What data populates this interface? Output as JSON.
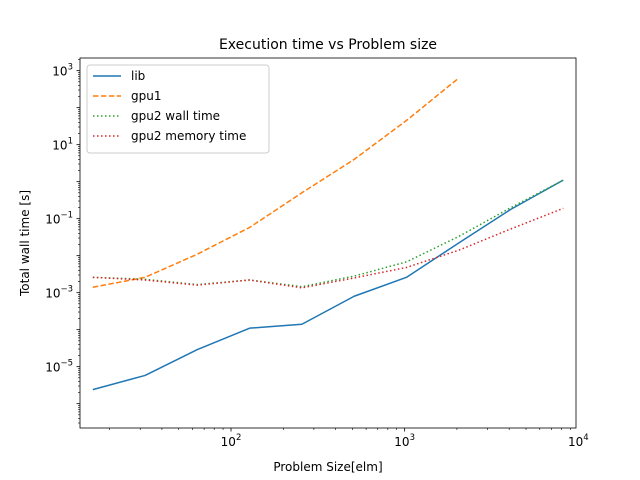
{
  "chart_data": {
    "type": "line",
    "title": "Execution time vs Problem size",
    "xlabel": "Problem Size[elm]",
    "ylabel": "Total wall time [s]",
    "xscale": "log",
    "yscale": "log",
    "xlim": [
      13.5,
      9700
    ],
    "ylim": [
      2.2e-07,
      2200
    ],
    "xticks": [
      {
        "value": 100,
        "mantissa": "10",
        "exp": "2"
      },
      {
        "value": 1000,
        "mantissa": "10",
        "exp": "3"
      },
      {
        "value": 10000,
        "mantissa": "10",
        "exp": "4"
      }
    ],
    "yticks": [
      {
        "value": 1e-05,
        "mantissa": "10",
        "exp": "−5"
      },
      {
        "value": 0.001,
        "mantissa": "10",
        "exp": "−3"
      },
      {
        "value": 0.1,
        "mantissa": "10",
        "exp": "−1"
      },
      {
        "value": 10,
        "mantissa": "10",
        "exp": "1"
      },
      {
        "value": 1000,
        "mantissa": "10",
        "exp": "3"
      }
    ],
    "grid": false,
    "legend_position": "top-left",
    "series": [
      {
        "name": "lib",
        "color": "#1f77b4",
        "dash": "solid",
        "x": [
          16,
          32,
          64,
          128,
          256,
          512,
          1024,
          2048,
          4096,
          8192
        ],
        "y": [
          2.4e-06,
          5.8e-06,
          2.9e-05,
          0.00011,
          0.00014,
          0.0008,
          0.0026,
          0.022,
          0.18,
          1.1
        ]
      },
      {
        "name": "gpu1",
        "color": "#ff7f0e",
        "dash": "dashed",
        "x": [
          16,
          32,
          64,
          128,
          256,
          512,
          1024,
          2048
        ],
        "y": [
          0.0014,
          0.0026,
          0.011,
          0.058,
          0.5,
          4.0,
          45.0,
          630.0
        ]
      },
      {
        "name": "gpu2 wall time",
        "color": "#2ca02c",
        "dash": "dotted",
        "x": [
          16,
          32,
          64,
          128,
          256,
          512,
          1024,
          2048,
          4096,
          8192
        ],
        "y": [
          0.0026,
          0.0023,
          0.00165,
          0.0022,
          0.00145,
          0.0028,
          0.0068,
          0.033,
          0.2,
          1.1
        ]
      },
      {
        "name": "gpu2 memory time",
        "color": "#d62728",
        "dash": "dotted",
        "x": [
          16,
          32,
          64,
          128,
          256,
          512,
          1024,
          2048,
          4096,
          8192
        ],
        "y": [
          0.0026,
          0.0022,
          0.0016,
          0.0022,
          0.00135,
          0.0025,
          0.0048,
          0.014,
          0.053,
          0.19
        ]
      }
    ]
  }
}
